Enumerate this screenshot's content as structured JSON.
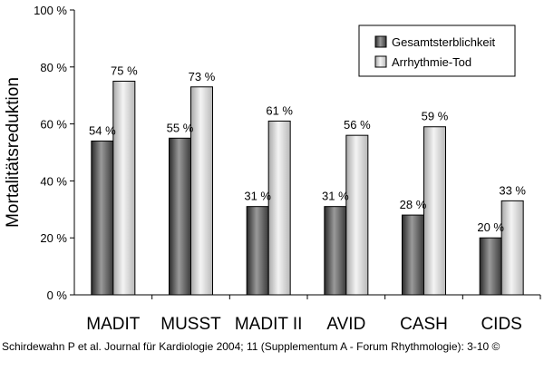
{
  "chart_data": {
    "type": "bar",
    "ylabel": "Mortalitätsreduktion",
    "xlabel": "",
    "ylim": [
      0,
      100
    ],
    "yticks": [
      0,
      20,
      40,
      60,
      80,
      100
    ],
    "ytick_suffix": " %",
    "categories": [
      "MADIT",
      "MUSST",
      "MADIT II",
      "AVID",
      "CASH",
      "CIDS"
    ],
    "series": [
      {
        "name": "Gesamtsterblichkeit",
        "values": [
          54,
          55,
          31,
          31,
          28,
          20
        ],
        "color": "#555555"
      },
      {
        "name": "Arrhythmie-Tod",
        "values": [
          75,
          73,
          61,
          56,
          59,
          33
        ],
        "color": "#d8d8d8"
      }
    ],
    "value_labels": [
      [
        "54 %",
        "55 %",
        "31 %",
        "31 %",
        "28 %",
        "20 %"
      ],
      [
        "75 %",
        "73 %",
        "61 %",
        "56 %",
        "59 %",
        "33 %"
      ]
    ],
    "legend_position": "top-right",
    "grid": false
  },
  "source": "Schirdewahn P et al. Journal für Kardiologie 2004; 11 (Supplementum A - Forum Rhythmologie): 3-10 ©"
}
